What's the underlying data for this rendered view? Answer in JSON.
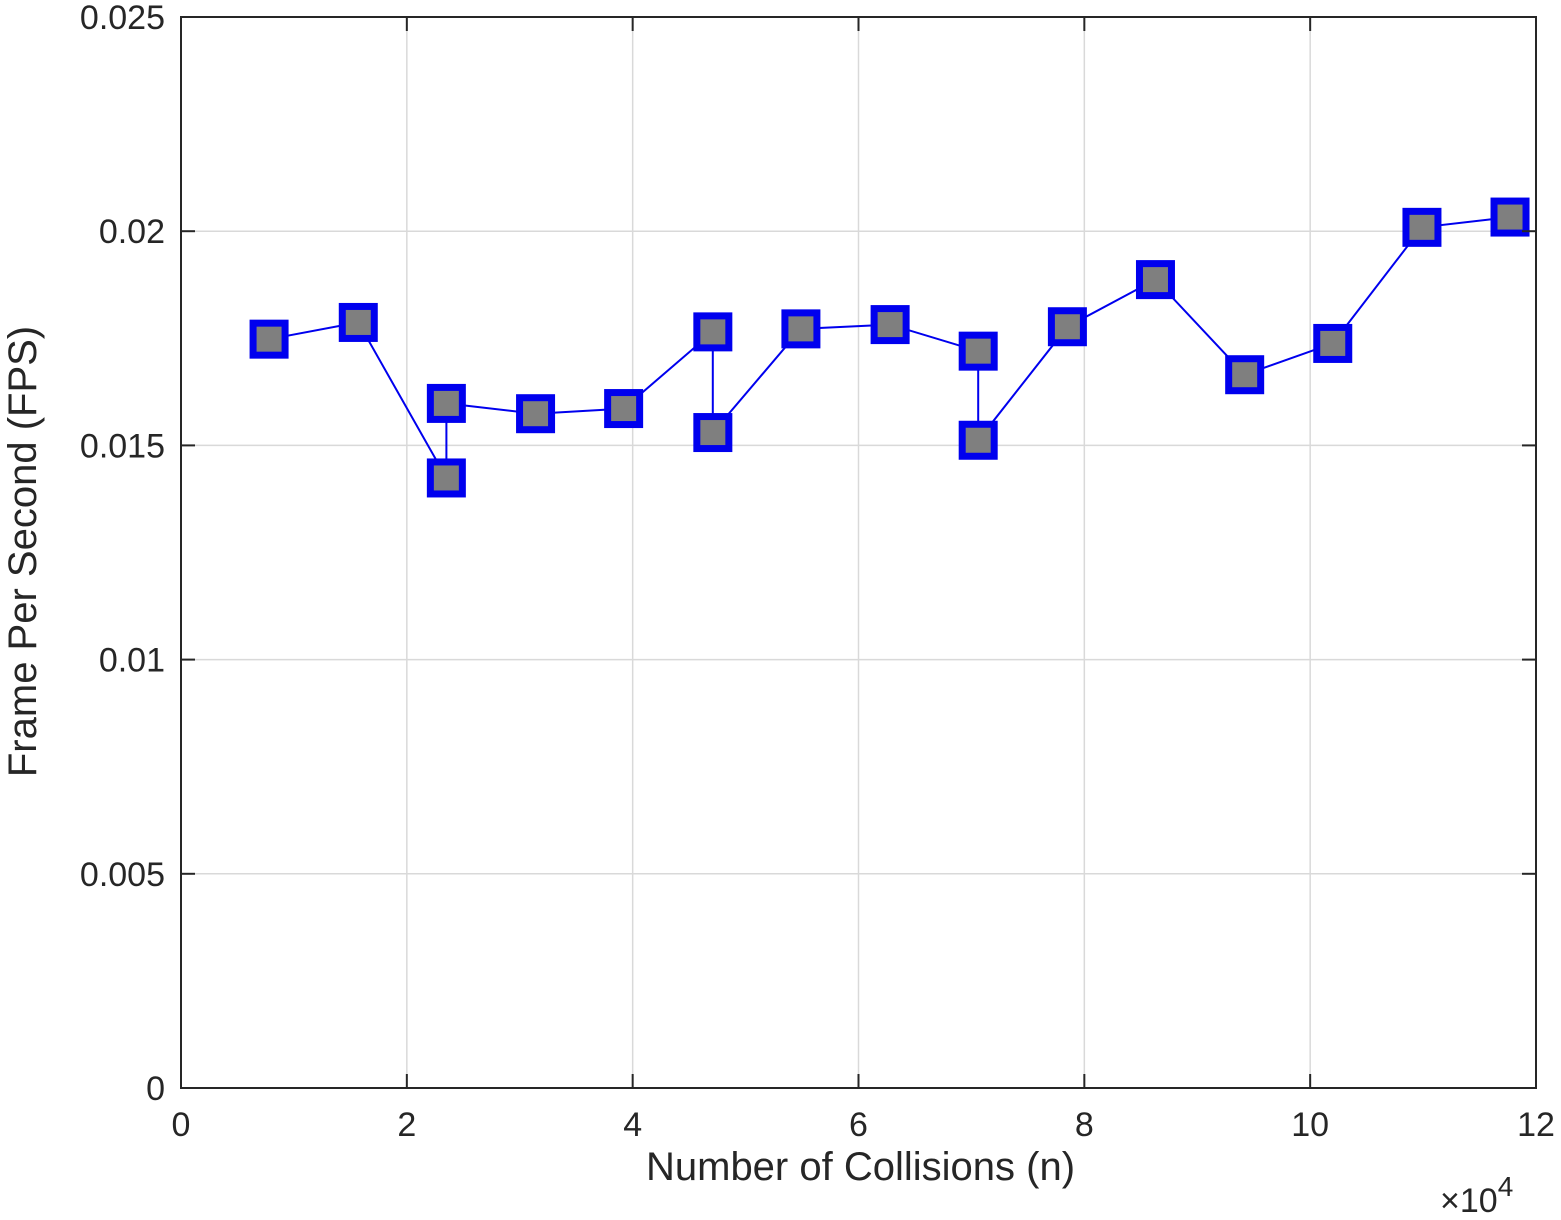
{
  "chart_data": {
    "type": "line",
    "xlabel": "Number of Collisions (n)",
    "ylabel": "Frame Per Second (FPS)",
    "x_exponent_label": {
      "base": "×10",
      "exponent": "4"
    },
    "xlim": [
      0,
      12
    ],
    "ylim": [
      0,
      0.025
    ],
    "x_ticks": [
      0,
      2,
      4,
      6,
      8,
      10,
      12
    ],
    "x_tick_labels": [
      "0",
      "2",
      "4",
      "6",
      "8",
      "10",
      "12"
    ],
    "y_ticks": [
      0,
      0.005,
      0.01,
      0.015,
      0.02,
      0.025
    ],
    "y_tick_labels": [
      "0",
      "0.005",
      "0.01",
      "0.015",
      "0.02",
      "0.025"
    ],
    "grid": true,
    "colors": {
      "line": "#0000ee",
      "marker_fill": "#7f7f7f",
      "marker_edge": "#0000ee"
    },
    "series": [
      {
        "x": [
          0.78,
          1.57,
          2.35,
          2.35,
          3.14,
          3.92,
          4.71,
          4.71,
          5.49,
          6.28,
          7.06,
          7.06,
          7.85,
          8.63,
          9.42,
          10.2,
          10.99,
          11.77
        ],
        "y": [
          0.01748,
          0.01787,
          0.01424,
          0.01598,
          0.01574,
          0.01586,
          0.01765,
          0.0153,
          0.01772,
          0.01782,
          0.0172,
          0.01512,
          0.01777,
          0.01887,
          0.01665,
          0.01738,
          0.02009,
          0.02033
        ]
      }
    ]
  }
}
